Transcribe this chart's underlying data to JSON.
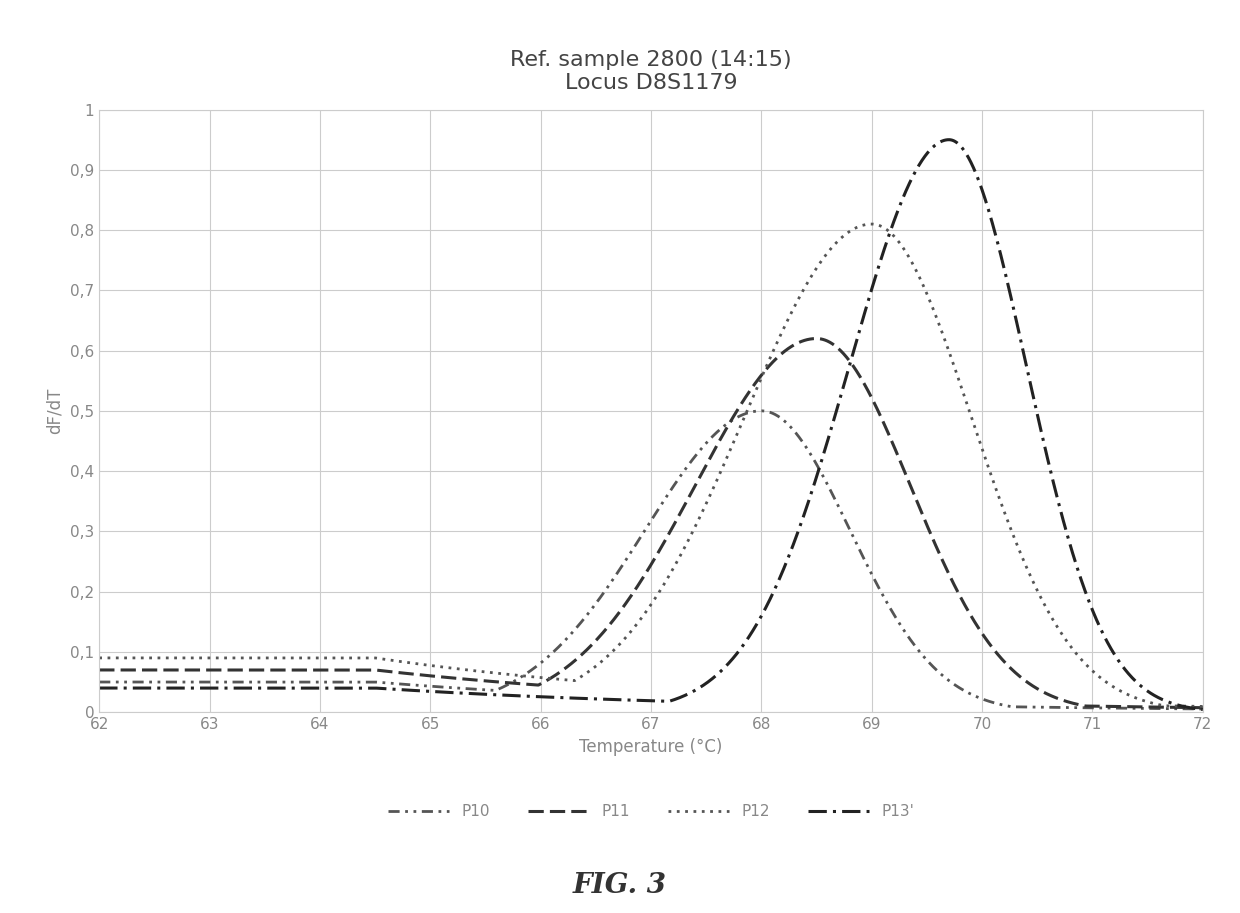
{
  "title_line1": "Ref. sample 2800 (14:15)",
  "title_line2": "Locus D8S1179",
  "xlabel": "Temperature (°C)",
  "ylabel": "dF/dT",
  "xlim": [
    62,
    72
  ],
  "ylim": [
    0,
    1
  ],
  "xticks": [
    62,
    63,
    64,
    65,
    66,
    67,
    68,
    69,
    70,
    71,
    72
  ],
  "yticks": [
    0,
    0.1,
    0.2,
    0.3,
    0.4,
    0.5,
    0.6,
    0.7,
    0.8,
    0.9,
    1
  ],
  "ytick_labels": [
    "0",
    "0,1",
    "0,2",
    "0,3",
    "0,4",
    "0,5",
    "0,6",
    "0,7",
    "0,8",
    "0,9",
    "1"
  ],
  "fig_caption": "FIG. 3",
  "series": [
    {
      "name": "P10",
      "peak_temp": 68.0,
      "peak_val": 0.5,
      "base_val": 0.05,
      "sigma_l": 1.05,
      "sigma_r": 0.8,
      "color": "#555555"
    },
    {
      "name": "P11",
      "peak_temp": 68.5,
      "peak_val": 0.62,
      "base_val": 0.07,
      "sigma_l": 1.1,
      "sigma_r": 0.85,
      "color": "#333333"
    },
    {
      "name": "P12",
      "peak_temp": 69.0,
      "peak_val": 0.81,
      "base_val": 0.09,
      "sigma_l": 1.15,
      "sigma_r": 0.9,
      "color": "#555555"
    },
    {
      "name": "P13'",
      "peak_temp": 69.7,
      "peak_val": 0.95,
      "base_val": 0.04,
      "sigma_l": 0.9,
      "sigma_r": 0.7,
      "color": "#222222"
    }
  ],
  "background_color": "#ffffff",
  "grid_color": "#cccccc",
  "title_fontsize": 16,
  "axis_label_fontsize": 12,
  "tick_fontsize": 11,
  "legend_fontsize": 11
}
